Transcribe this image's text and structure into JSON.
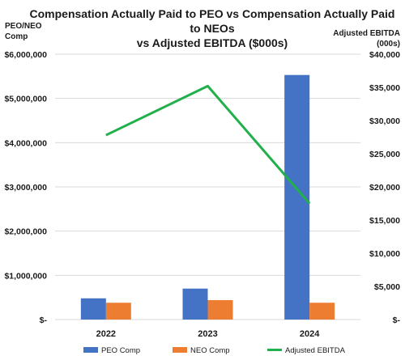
{
  "chart_data": {
    "type": "bar",
    "title_lines": [
      "Compensation Actually Paid to PEO vs Compensation Actually Paid",
      "to NEOs",
      "vs Adjusted EBITDA ($000s)"
    ],
    "ylabel_left_lines": [
      "PEO/NEO",
      "Comp"
    ],
    "ylabel_right_lines": [
      "Adjusted EBITDA",
      "(000s)"
    ],
    "categories": [
      "2022",
      "2023",
      "2024"
    ],
    "series": [
      {
        "name": "PEO Comp",
        "type": "bar",
        "axis": "left",
        "color": "#4472C4",
        "values": [
          480000,
          700000,
          5530000
        ]
      },
      {
        "name": "NEO Comp",
        "type": "bar",
        "axis": "left",
        "color": "#ED7D31",
        "values": [
          380000,
          440000,
          380000
        ]
      },
      {
        "name": "Adjusted EBITDA",
        "type": "line",
        "axis": "right",
        "color": "#21B04B",
        "values": [
          27800,
          35200,
          17500
        ]
      }
    ],
    "ylim_left": [
      0,
      6000000
    ],
    "ylim_right": [
      0,
      40000
    ],
    "left_ticks": [
      {
        "value": 0,
        "label": "$-"
      },
      {
        "value": 1000000,
        "label": "$1,000,000"
      },
      {
        "value": 2000000,
        "label": "$2,000,000"
      },
      {
        "value": 3000000,
        "label": "$3,000,000"
      },
      {
        "value": 4000000,
        "label": "$4,000,000"
      },
      {
        "value": 5000000,
        "label": "$5,000,000"
      },
      {
        "value": 6000000,
        "label": "$6,000,000"
      }
    ],
    "right_ticks": [
      {
        "value": 0,
        "label": "$-"
      },
      {
        "value": 5000,
        "label": "$5,000"
      },
      {
        "value": 10000,
        "label": "$10,000"
      },
      {
        "value": 15000,
        "label": "$15,000"
      },
      {
        "value": 20000,
        "label": "$20,000"
      },
      {
        "value": 25000,
        "label": "$25,000"
      },
      {
        "value": 30000,
        "label": "$30,000"
      },
      {
        "value": 35000,
        "label": "$35,000"
      },
      {
        "value": 40000,
        "label": "$40,000"
      }
    ],
    "grid": true,
    "legend_position": "bottom"
  }
}
